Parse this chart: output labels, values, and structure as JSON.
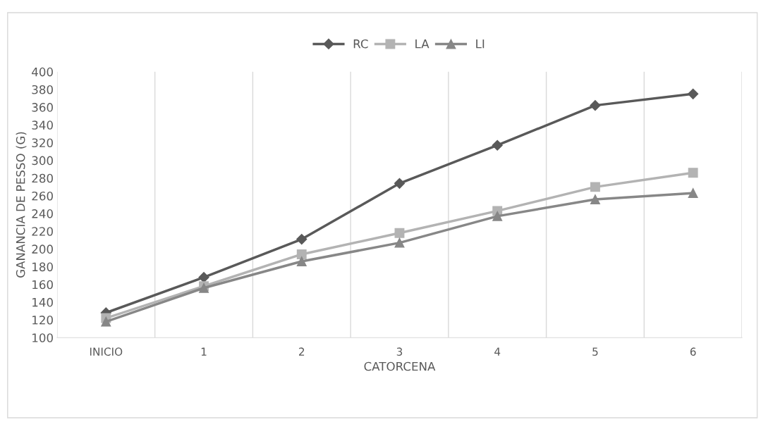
{
  "chart_data": {
    "type": "line",
    "xlabel": "CATORCENA",
    "ylabel": "GANANCIA DE PESSO (G)",
    "categories": [
      "INICIO",
      "1",
      "2",
      "3",
      "4",
      "5",
      "6"
    ],
    "series": [
      {
        "name": "RC",
        "color": "#595959",
        "marker": "diamond",
        "values": [
          128,
          168,
          211,
          274,
          317,
          362,
          375
        ]
      },
      {
        "name": "LA",
        "color": "#b3b3b3",
        "marker": "square",
        "values": [
          122,
          158,
          194,
          218,
          243,
          270,
          286
        ]
      },
      {
        "name": "LI",
        "color": "#878787",
        "marker": "triangle",
        "values": [
          118,
          156,
          186,
          207,
          237,
          256,
          263
        ]
      }
    ],
    "ylim": [
      100,
      400
    ],
    "yticks": [
      100,
      120,
      140,
      160,
      180,
      200,
      220,
      240,
      260,
      280,
      300,
      320,
      340,
      360,
      380,
      400
    ],
    "grid": "x",
    "legend": "top"
  }
}
